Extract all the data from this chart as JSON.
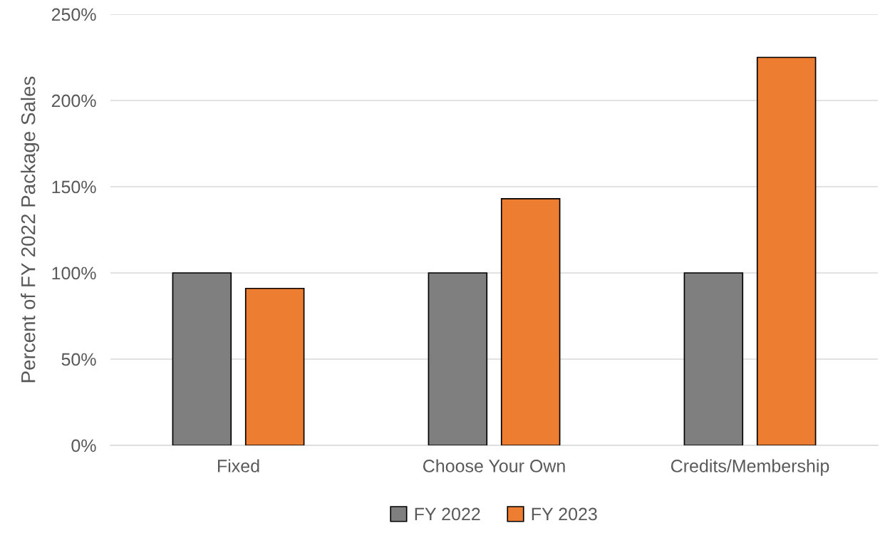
{
  "chart_data": {
    "type": "bar",
    "ylabel": "Percent of FY 2022 Package Sales",
    "categories": [
      "Fixed",
      "Choose Your Own",
      "Credits/Membership"
    ],
    "series": [
      {
        "name": "FY 2022",
        "color": "#7f7f7f",
        "values": [
          100,
          100,
          100
        ]
      },
      {
        "name": "FY 2023",
        "color": "#ed7d31",
        "values": [
          91,
          143,
          225
        ]
      }
    ],
    "ylim": [
      0,
      250
    ],
    "yticks": [
      {
        "value": 0,
        "label": "0%"
      },
      {
        "value": 50,
        "label": "50%"
      },
      {
        "value": 100,
        "label": "100%"
      },
      {
        "value": 150,
        "label": "150%"
      },
      {
        "value": 200,
        "label": "200%"
      },
      {
        "value": 250,
        "label": "250%"
      }
    ],
    "grid": "y",
    "legend": "bottom"
  }
}
